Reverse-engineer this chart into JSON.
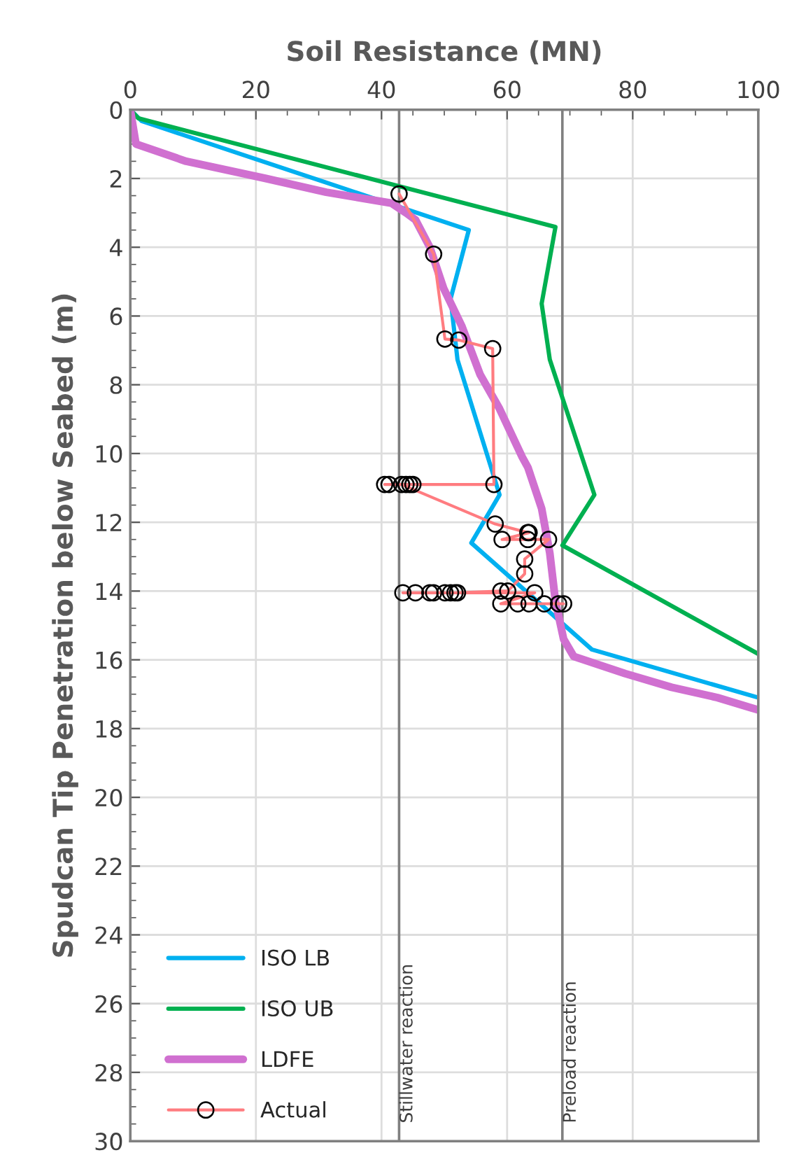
{
  "chart_data": {
    "type": "line",
    "xlabel": "Soil Resistance (MN)",
    "ylabel": "Spudcan Tip Penetration below Seabed (m)",
    "xlim": [
      0,
      100
    ],
    "xticks": [
      0,
      20,
      40,
      60,
      80,
      100
    ],
    "ylim": [
      30,
      0
    ],
    "yticks": [
      0,
      2,
      4,
      6,
      8,
      10,
      12,
      14,
      16,
      18,
      20,
      22,
      24,
      26,
      28,
      30
    ],
    "grid": true,
    "legend": "bottom left",
    "line_style": "solid",
    "series": [
      {
        "name": "ISO LB",
        "color": "#00b0f0",
        "marker": "none",
        "x": [
          0,
          1.8,
          53.9,
          51.0,
          52.1,
          58.8,
          54.3,
          73.5,
          100
        ],
        "values": [
          0,
          0.33,
          3.5,
          5.5,
          7.27,
          11.2,
          12.6,
          15.7,
          17.1
        ]
      },
      {
        "name": "ISO UB",
        "color": "#00b050",
        "marker": "none",
        "x": [
          0,
          1.3,
          67.7,
          65.5,
          66.8,
          73.9,
          68.8,
          100
        ],
        "values": [
          0,
          0.25,
          3.41,
          5.64,
          7.27,
          11.2,
          12.67,
          15.83
        ]
      },
      {
        "name": "LDFE",
        "color": "#d070d0",
        "marker": "none",
        "x": [
          0,
          0.9,
          8.9,
          21.6,
          31.2,
          41.6,
          43.9,
          45.4,
          47.7,
          49.9,
          52.8,
          55.7,
          58.8,
          62.4,
          63.3,
          65.5,
          66.8,
          67.7,
          69.0,
          70.6,
          78.8,
          86.2,
          93.5,
          100
        ],
        "values": [
          0,
          1.0,
          1.5,
          2.0,
          2.4,
          2.72,
          3.0,
          3.2,
          4.0,
          5.2,
          6.3,
          7.7,
          8.7,
          10.1,
          10.4,
          11.6,
          12.9,
          14.3,
          15.4,
          15.9,
          16.4,
          16.8,
          17.1,
          17.46
        ]
      },
      {
        "name": "Actual",
        "color": "#ff7c80",
        "marker": "circle",
        "x": [
          42.8,
          48.3,
          50.1,
          52.3,
          57.7,
          57.9,
          45.0,
          44.5,
          43.9,
          41.2,
          40.5,
          43.2,
          58.1,
          63.3,
          63.5,
          59.2,
          63.3,
          66.6,
          62.8,
          62.8,
          60.1,
          59.0,
          52.1,
          51.7,
          51.0,
          50.1,
          48.3,
          47.7,
          45.4,
          43.4,
          64.4,
          59.0,
          61.7,
          63.5,
          65.9,
          68.2,
          69.0
        ],
        "values": [
          2.45,
          4.2,
          6.67,
          6.7,
          6.95,
          10.9,
          10.9,
          10.9,
          10.9,
          10.9,
          10.9,
          10.9,
          12.05,
          12.3,
          12.3,
          12.5,
          12.5,
          12.5,
          13.07,
          13.5,
          14.0,
          14.0,
          14.05,
          14.05,
          14.05,
          14.05,
          14.05,
          14.05,
          14.05,
          14.05,
          14.05,
          14.37,
          14.37,
          14.37,
          14.37,
          14.37,
          14.37
        ]
      }
    ],
    "ref_lines": [
      {
        "axis": "x",
        "value": 42.8,
        "label": "Stillwater reaction",
        "color": "#808080",
        "line_style": "solid"
      },
      {
        "axis": "x",
        "value": 68.8,
        "label": "Preload reaction",
        "color": "#808080",
        "line_style": "solid"
      }
    ]
  }
}
